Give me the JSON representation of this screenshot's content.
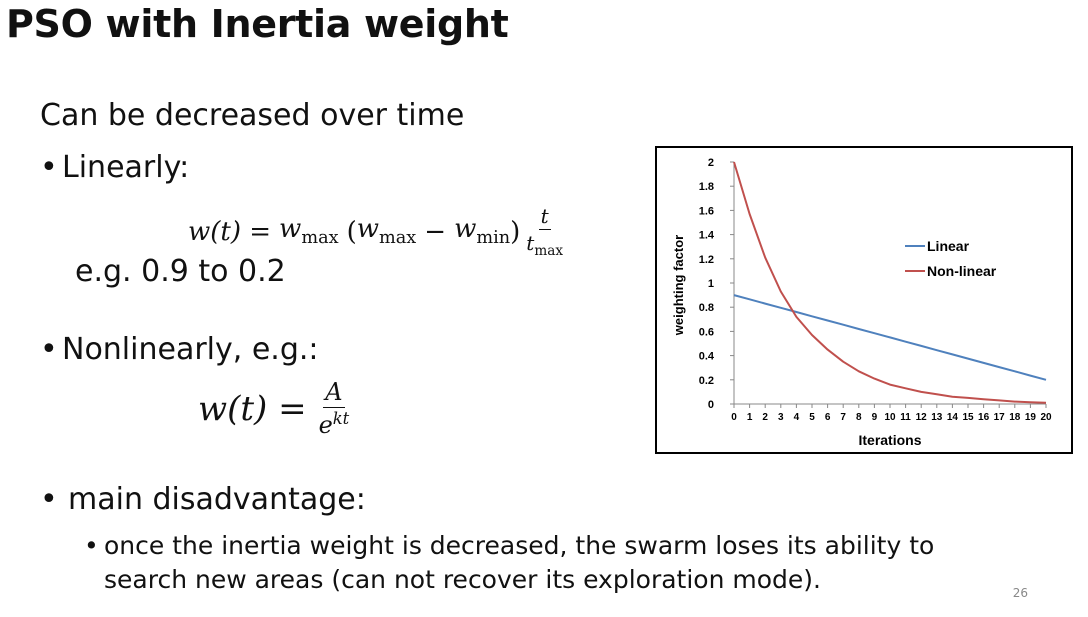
{
  "slide": {
    "title": "PSO with Inertia weight",
    "intro": "Can be decreased over time",
    "bullet_linear": "Linearly:",
    "linear_example": "e.g. 0.9 to 0.2",
    "bullet_nonlinear": "Nonlinearly, e.g.:",
    "bullet_disadvantage": "main disadvantage:",
    "disadvantage_detail": "once the inertia weight is decreased, the swarm loses its ability to search new areas (can not recover its exploration mode).",
    "page_number": "26",
    "bullet_symbol": "•"
  },
  "formula_linear": {
    "lhs": "w(t) =",
    "w": "w",
    "max": "max",
    "min": "min",
    "open": "(",
    "minus": "−",
    "close": ")",
    "num": "t",
    "den_t": "t"
  },
  "formula_nonlinear": {
    "lhs": "w(t) =",
    "num": "A",
    "den_e": "e",
    "exp": "kt"
  },
  "chart_data": {
    "type": "line",
    "x": [
      0,
      1,
      2,
      3,
      4,
      5,
      6,
      7,
      8,
      9,
      10,
      11,
      12,
      13,
      14,
      15,
      16,
      17,
      18,
      19,
      20
    ],
    "x_tick_labels": [
      "0",
      "1",
      "2",
      "3",
      "4",
      "5",
      "6",
      "7",
      "8",
      "9",
      "10",
      "11",
      "12",
      "13",
      "14",
      "15",
      "16",
      "17",
      "18",
      "19",
      "20"
    ],
    "series": [
      {
        "name": "Linear",
        "color": "#4f81bd",
        "values": [
          0.9,
          0.865,
          0.83,
          0.795,
          0.76,
          0.725,
          0.69,
          0.655,
          0.62,
          0.585,
          0.55,
          0.515,
          0.48,
          0.445,
          0.41,
          0.375,
          0.34,
          0.305,
          0.27,
          0.235,
          0.2
        ]
      },
      {
        "name": "Non-linear",
        "color": "#c0504d",
        "values": [
          2.0,
          1.57,
          1.21,
          0.93,
          0.72,
          0.57,
          0.45,
          0.35,
          0.27,
          0.21,
          0.16,
          0.13,
          0.1,
          0.08,
          0.06,
          0.05,
          0.04,
          0.03,
          0.02,
          0.015,
          0.01
        ]
      }
    ],
    "y_ticks": [
      "0",
      "0.2",
      "0.4",
      "0.6",
      "0.8",
      "1",
      "1.2",
      "1.4",
      "1.6",
      "1.8",
      "2"
    ],
    "xlabel": "Iterations",
    "ylabel": "weighting factor",
    "xlim": [
      0,
      20
    ],
    "ylim": [
      0,
      2
    ],
    "grid": false,
    "legend": "right"
  }
}
